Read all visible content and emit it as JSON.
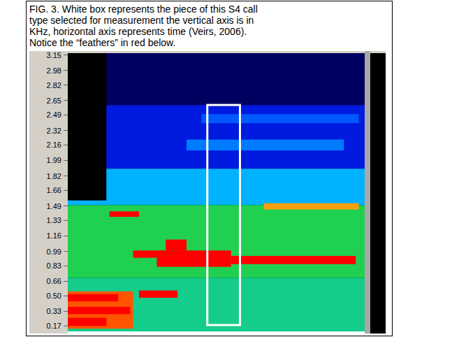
{
  "caption": {
    "lines": [
      "FIG. 3. White box represents the piece of this S4 call",
      "type selected for measurement the vertical axis is in",
      "KHz, horizontal axis represents time (Veirs, 2006).",
      "Notice the “feathers” in red below."
    ]
  },
  "chart_data": {
    "type": "spectrogram",
    "tick_labels": "y",
    "ylim": [
      0.11,
      3.17
    ],
    "xlim": [
      0,
      100
    ],
    "yticks": [
      3.15,
      2.98,
      2.82,
      2.65,
      2.49,
      2.32,
      2.16,
      1.99,
      1.82,
      1.66,
      1.49,
      1.33,
      1.16,
      0.99,
      0.83,
      0.66,
      {
        "value": 0.5,
        "label": "0.50"
      },
      0.33,
      0.17
    ],
    "background": [
      {
        "f0": 0.11,
        "f1": 0.7,
        "level": 0.5
      },
      {
        "f0": 0.7,
        "f1": 1.5,
        "level": 0.55
      },
      {
        "f0": 1.5,
        "f1": 1.9,
        "level": 0.38
      },
      {
        "f0": 1.9,
        "f1": 2.6,
        "level": 0.22
      },
      {
        "f0": 2.6,
        "f1": 3.17,
        "level": 0.1
      }
    ],
    "bands": [
      {
        "x0": 0,
        "x1": 13,
        "f0": 1.55,
        "f1": 3.17,
        "level": 0
      },
      {
        "x0": 40,
        "x1": 93,
        "f0": 2.1,
        "f1": 2.22,
        "level": 0.33
      },
      {
        "x0": 45,
        "x1": 98,
        "f0": 2.4,
        "f1": 2.5,
        "level": 0.3
      },
      {
        "x0": 0,
        "x1": 22,
        "f0": 0.14,
        "f1": 0.55,
        "level": 0.9
      },
      {
        "x0": 0,
        "x1": 17,
        "f0": 0.44,
        "f1": 0.52,
        "level": 1
      },
      {
        "x0": 0,
        "x1": 21,
        "f0": 0.3,
        "f1": 0.38,
        "level": 1
      },
      {
        "x0": 0,
        "x1": 13,
        "f0": 0.17,
        "f1": 0.26,
        "level": 1
      },
      {
        "x0": 24,
        "x1": 37,
        "f0": 0.48,
        "f1": 0.56,
        "level": 1
      },
      {
        "x0": 14,
        "x1": 24,
        "f0": 1.37,
        "f1": 1.43,
        "level": 1
      },
      {
        "x0": 22,
        "x1": 35,
        "f0": 0.92,
        "f1": 1.0,
        "level": 1
      },
      {
        "x0": 30,
        "x1": 55,
        "f0": 0.82,
        "f1": 1.0,
        "level": 1
      },
      {
        "x0": 33,
        "x1": 40,
        "f0": 1.0,
        "f1": 1.12,
        "level": 1
      },
      {
        "x0": 55,
        "x1": 97,
        "f0": 0.85,
        "f1": 0.94,
        "level": 1
      },
      {
        "x0": 66,
        "x1": 98,
        "f0": 1.45,
        "f1": 1.52,
        "level": 0.8
      }
    ],
    "selection": {
      "x0": 47,
      "x1": 58,
      "f0": 0.18,
      "f1": 2.6
    }
  }
}
